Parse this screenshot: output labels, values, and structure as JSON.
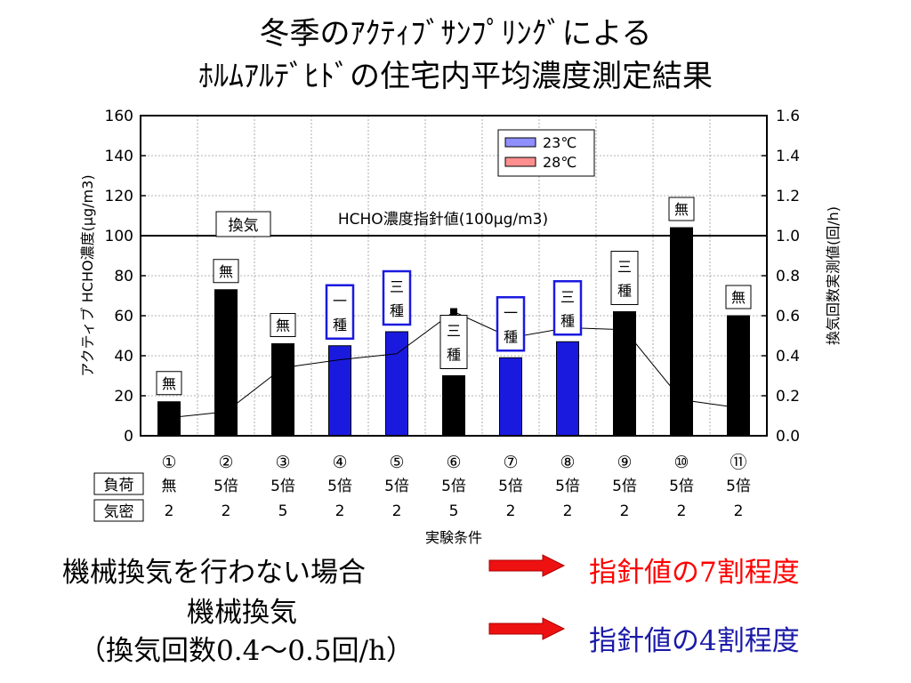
{
  "title_line1": "冬季のｱｸﾃｨﾌﾞｻﾝﾌﾟﾘﾝｸﾞによる",
  "title_line2": "ﾎﾙﾑｱﾙﾃﾞﾋﾄﾞの住宅内平均濃度測定結果",
  "colors": {
    "black_bar": "#000000",
    "blue_bar": "#1a1adf",
    "legend_23": "#8f8fff",
    "legend_28": "#ff8f8f",
    "guideline": "#000000"
  },
  "chart_data": {
    "type": "bar",
    "ylabel_left": "アクティブ HCHO濃度(μg/m3)",
    "ylabel_right": "換気回数実測値(回/h)",
    "xlabel": "実験条件",
    "ylim_left": [
      0,
      160
    ],
    "ylim_right": [
      0,
      1.6
    ],
    "yticks_left": [
      "160",
      "140",
      "120",
      "100",
      "80",
      "60",
      "40",
      "20",
      "0"
    ],
    "yticks_right": [
      "1.6",
      "1.4",
      "1.2",
      "1.0",
      "0.8",
      "0.6",
      "0.4",
      "0.2",
      "0.0"
    ],
    "grid": true,
    "legend": {
      "position": "top-right",
      "entries": [
        "23℃",
        "28℃"
      ]
    },
    "guideline": {
      "value": 100,
      "label": "HCHO濃度指針値(100μg/m3)"
    },
    "label_ventilation": "換気",
    "categories": [
      "①",
      "②",
      "③",
      "④",
      "⑤",
      "⑥",
      "⑦",
      "⑧",
      "⑨",
      "⑩",
      "⑪"
    ],
    "bars": [
      {
        "value": 17,
        "color": "black",
        "annotation": "無"
      },
      {
        "value": 73,
        "color": "black",
        "annotation": "無"
      },
      {
        "value": 46,
        "color": "black",
        "annotation": "無"
      },
      {
        "value": 45,
        "color": "blue",
        "annotation": "一種"
      },
      {
        "value": 52,
        "color": "blue",
        "annotation": "三種"
      },
      {
        "value": 30,
        "color": "black",
        "annotation": "三種"
      },
      {
        "value": 39,
        "color": "blue",
        "annotation": "一種"
      },
      {
        "value": 47,
        "color": "blue",
        "annotation": "三種"
      },
      {
        "value": 62,
        "color": "black",
        "annotation": "三種"
      },
      {
        "value": 104,
        "color": "black",
        "annotation": "無"
      },
      {
        "value": 60,
        "color": "black",
        "annotation": "無"
      }
    ],
    "ventilation_rate": [
      0.09,
      0.12,
      0.34,
      0.38,
      0.41,
      0.62,
      0.49,
      0.54,
      0.53,
      0.18,
      0.14
    ],
    "ventilation_markers": [
      false,
      false,
      false,
      false,
      false,
      true,
      true,
      true,
      false,
      false,
      false
    ],
    "row_load": {
      "label": "負荷",
      "values": [
        "無",
        "5倍",
        "5倍",
        "5倍",
        "5倍",
        "5倍",
        "5倍",
        "5倍",
        "5倍",
        "5倍",
        "5倍"
      ]
    },
    "row_airtight": {
      "label": "気密",
      "values": [
        "2",
        "2",
        "5",
        "2",
        "2",
        "5",
        "2",
        "2",
        "2",
        "2",
        "2"
      ]
    }
  },
  "conclusion": {
    "left_line1": "機械換気を行わない場合",
    "left_line2": "機械換気",
    "left_line3": "（換気回数0.4～0.5回/h）",
    "right_line1": "指針値の7割程度",
    "right_line2": "指針値の4割程度"
  }
}
